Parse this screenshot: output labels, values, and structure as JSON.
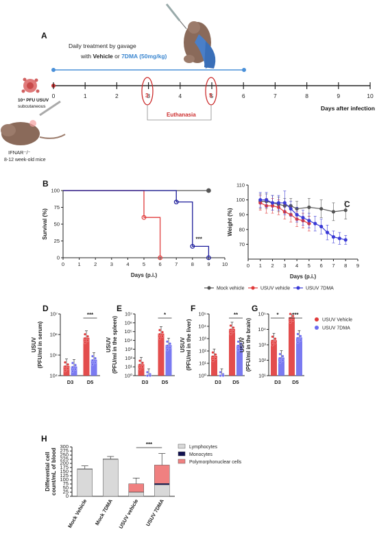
{
  "figure": {
    "panel_labels": [
      "A",
      "B",
      "C",
      "D",
      "E",
      "F",
      "G",
      "H"
    ]
  },
  "panel_a": {
    "timeline_ticks": [
      "0",
      "1",
      "2",
      "3",
      "4",
      "5",
      "6",
      "7",
      "8",
      "9",
      "10"
    ],
    "axis_label": "Days after infection",
    "treatment_line1": "Daily treatment by gavage",
    "treatment_with": "with ",
    "treatment_vehicle": "Vehicle",
    "treatment_or": " or ",
    "treatment_drug": "7DMA (50mg/kg)",
    "inoculum_label": "10⁴ PFU USUV",
    "inoculum_route": "subcutaneous",
    "mouse_strain": "IFNAR⁻/⁻",
    "mouse_age": "8-12 week-old mice",
    "euthanasia_label": "Euthanasia",
    "euthanasia_days": [
      "3",
      "5"
    ],
    "colors": {
      "treatment": "#4a90d9",
      "euthanasia": "#cc2b2b",
      "drug_text": "#3a86d0"
    }
  },
  "legend_bc": {
    "entries": [
      {
        "name": "Mock vehicle",
        "color": "#555555"
      },
      {
        "name": "USUV vehicle",
        "color": "#e03a3a"
      },
      {
        "name": "USUV 7DMA",
        "color": "#3a3ad6"
      }
    ]
  },
  "legend_dg": {
    "entries": [
      {
        "name": "USUV Vehicle",
        "color": "#e03a3a"
      },
      {
        "name": "USUV 7DMA",
        "color": "#6b6bf0"
      }
    ]
  },
  "legend_h": {
    "entries": [
      {
        "name": "Lymphocytes",
        "color": "#d9d9d9"
      },
      {
        "name": "Monocytes",
        "color": "#101050"
      },
      {
        "name": "Polymorphonuclear cells",
        "color": "#f08080"
      }
    ]
  },
  "chart_data": [
    {
      "panel": "B",
      "type": "line",
      "xlabel": "Days (p.i.)",
      "ylabel": "Survival (%)",
      "xlim": [
        0,
        10
      ],
      "ylim": [
        0,
        100
      ],
      "xticks": [
        "0",
        "1",
        "2",
        "3",
        "4",
        "5",
        "6",
        "7",
        "8",
        "9",
        "10"
      ],
      "yticks": [
        "0",
        "25",
        "50",
        "75",
        "100"
      ],
      "step": true,
      "annotation": "***",
      "series": [
        {
          "color": "#555555",
          "points": [
            [
              0,
              100
            ],
            [
              9,
              100
            ]
          ]
        },
        {
          "color": "#e03a3a",
          "points": [
            [
              0,
              100
            ],
            [
              5,
              60
            ],
            [
              6,
              0
            ]
          ]
        },
        {
          "color": "#1a1a9a",
          "points": [
            [
              0,
              100
            ],
            [
              7,
              83
            ],
            [
              8,
              17
            ],
            [
              9,
              0
            ]
          ]
        }
      ]
    },
    {
      "panel": "C",
      "type": "line",
      "xlabel": "Days (p.i.)",
      "ylabel": "Weight (%)",
      "xlim": [
        0,
        9
      ],
      "ylim": [
        60,
        110
      ],
      "xticks": [
        "0",
        "1",
        "2",
        "3",
        "4",
        "5",
        "6",
        "7",
        "8",
        "9"
      ],
      "yticks": [
        "70",
        "80",
        "90",
        "100",
        "110"
      ],
      "series": [
        {
          "name": "Mock vehicle",
          "color": "#555555",
          "x": [
            1,
            1.5,
            2,
            2.5,
            3,
            3.5,
            4,
            5,
            6,
            7,
            8
          ],
          "y": [
            99,
            99,
            98,
            97,
            96,
            96,
            94,
            95,
            94,
            92,
            93
          ],
          "err": [
            5,
            5,
            5,
            5,
            5,
            5,
            5,
            6,
            6,
            6,
            6
          ]
        },
        {
          "name": "USUV vehicle",
          "color": "#e03a3a",
          "x": [
            1,
            1.5,
            2,
            2.5,
            3,
            3.5,
            4,
            4.5,
            5
          ],
          "y": [
            98,
            96,
            96,
            95,
            92,
            90,
            87,
            86,
            84
          ],
          "err": [
            5,
            5,
            5,
            5,
            5,
            5,
            5,
            5,
            5
          ]
        },
        {
          "name": "USUV 7DMA",
          "color": "#3a3ad6",
          "x": [
            1,
            1.5,
            2,
            2.5,
            3,
            3.5,
            4,
            4.5,
            5,
            5.5,
            6,
            6.5,
            7,
            7.5,
            8
          ],
          "y": [
            100,
            100,
            98,
            98,
            98,
            94,
            90,
            88,
            86,
            84,
            82,
            78,
            75,
            74,
            73
          ],
          "err": [
            5,
            5,
            5,
            5,
            8,
            5,
            5,
            5,
            5,
            5,
            5,
            5,
            4,
            4,
            3
          ]
        }
      ]
    },
    {
      "panel": "D",
      "type": "bar",
      "log": true,
      "ylabel_line1": "USUV",
      "ylabel_line2": "(PFU/ml in serum)",
      "ymin_exp": 4,
      "ymax_exp": 7,
      "yticks": [
        "10⁴",
        "10⁵",
        "10⁶",
        "10⁷"
      ],
      "categories": [
        "D3",
        "D5"
      ],
      "series": [
        {
          "name": "USUV Vehicle",
          "color": "#e03a3a",
          "values": [
            30000,
            700000
          ]
        },
        {
          "name": "USUV 7DMA",
          "color": "#6b6bf0",
          "values": [
            28000,
            60000
          ]
        }
      ],
      "significance": [
        {
          "category": "D5",
          "label": "***"
        }
      ]
    },
    {
      "panel": "E",
      "type": "bar",
      "log": true,
      "ylabel_line1": "USUV",
      "ylabel_line2": "(PFU/ml in the spleen)",
      "ymin_exp": 0,
      "ymax_exp": 7,
      "yticks": [
        "10⁰",
        "10¹",
        "10²",
        "10³",
        "10⁴",
        "10⁵",
        "10⁶",
        "10⁷"
      ],
      "categories": [
        "D3",
        "D5"
      ],
      "series": [
        {
          "name": "USUV Vehicle",
          "color": "#e03a3a",
          "values": [
            20,
            60000
          ]
        },
        {
          "name": "USUV 7DMA",
          "color": "#6b6bf0",
          "values": [
            1,
            3000
          ]
        }
      ],
      "significance": [
        {
          "category": "D5",
          "label": "*"
        }
      ]
    },
    {
      "panel": "F",
      "type": "bar",
      "log": true,
      "ylabel_line1": "USUV",
      "ylabel_line2": "(PFU/ml in the liver)",
      "ymin_exp": 0,
      "ymax_exp": 5,
      "yticks": [
        "10⁰",
        "10¹",
        "10²",
        "10³",
        "10⁴",
        "10⁵"
      ],
      "categories": [
        "D3",
        "D5"
      ],
      "series": [
        {
          "name": "USUV Vehicle",
          "color": "#e03a3a",
          "values": [
            40,
            6000
          ]
        },
        {
          "name": "USUV 7DMA",
          "color": "#6b6bf0",
          "values": [
            1,
            300
          ]
        }
      ],
      "significance": [
        {
          "category": "D5",
          "label": "**"
        }
      ]
    },
    {
      "panel": "G",
      "type": "bar",
      "log": true,
      "ylabel_line1": "USUV",
      "ylabel_line2": "(PFU/ml in the brain)",
      "ymin_exp": 1,
      "ymax_exp": 5,
      "yticks": [
        "10¹",
        "10²",
        "10³",
        "10⁴",
        "10⁵"
      ],
      "categories": [
        "D3",
        "D5"
      ],
      "series": [
        {
          "name": "USUV Vehicle",
          "color": "#e03a3a",
          "values": [
            2000,
            60000
          ]
        },
        {
          "name": "USUV 7DMA",
          "color": "#6b6bf0",
          "values": [
            150,
            3000
          ]
        }
      ],
      "significance": [
        {
          "category": "D3",
          "label": "*"
        },
        {
          "category": "D5",
          "label": "***"
        }
      ]
    },
    {
      "panel": "H",
      "type": "bar",
      "stacked": true,
      "ylabel_line1": "Differential cell",
      "ylabel_line2": "count/mL of blood",
      "ylim": [
        0,
        300
      ],
      "yticks": [
        "0",
        "25",
        "50",
        "75",
        "100",
        "125",
        "150",
        "175",
        "200",
        "225",
        "250",
        "275",
        "300"
      ],
      "categories": [
        "Mock Vehicle",
        "Mock 7DMA",
        "USUV vehicle",
        "USUV 7DMA"
      ],
      "series": [
        {
          "name": "Lymphocytes",
          "color": "#d9d9d9",
          "values": [
            165,
            225,
            25,
            70
          ]
        },
        {
          "name": "Monocytes",
          "color": "#101050",
          "values": [
            2,
            2,
            1,
            8
          ]
        },
        {
          "name": "Polymorphonuclear cells",
          "color": "#f08080",
          "values": [
            0,
            0,
            50,
            112
          ]
        }
      ],
      "errors": [
        18,
        15,
        35,
        70
      ],
      "significance_label": "***"
    }
  ]
}
